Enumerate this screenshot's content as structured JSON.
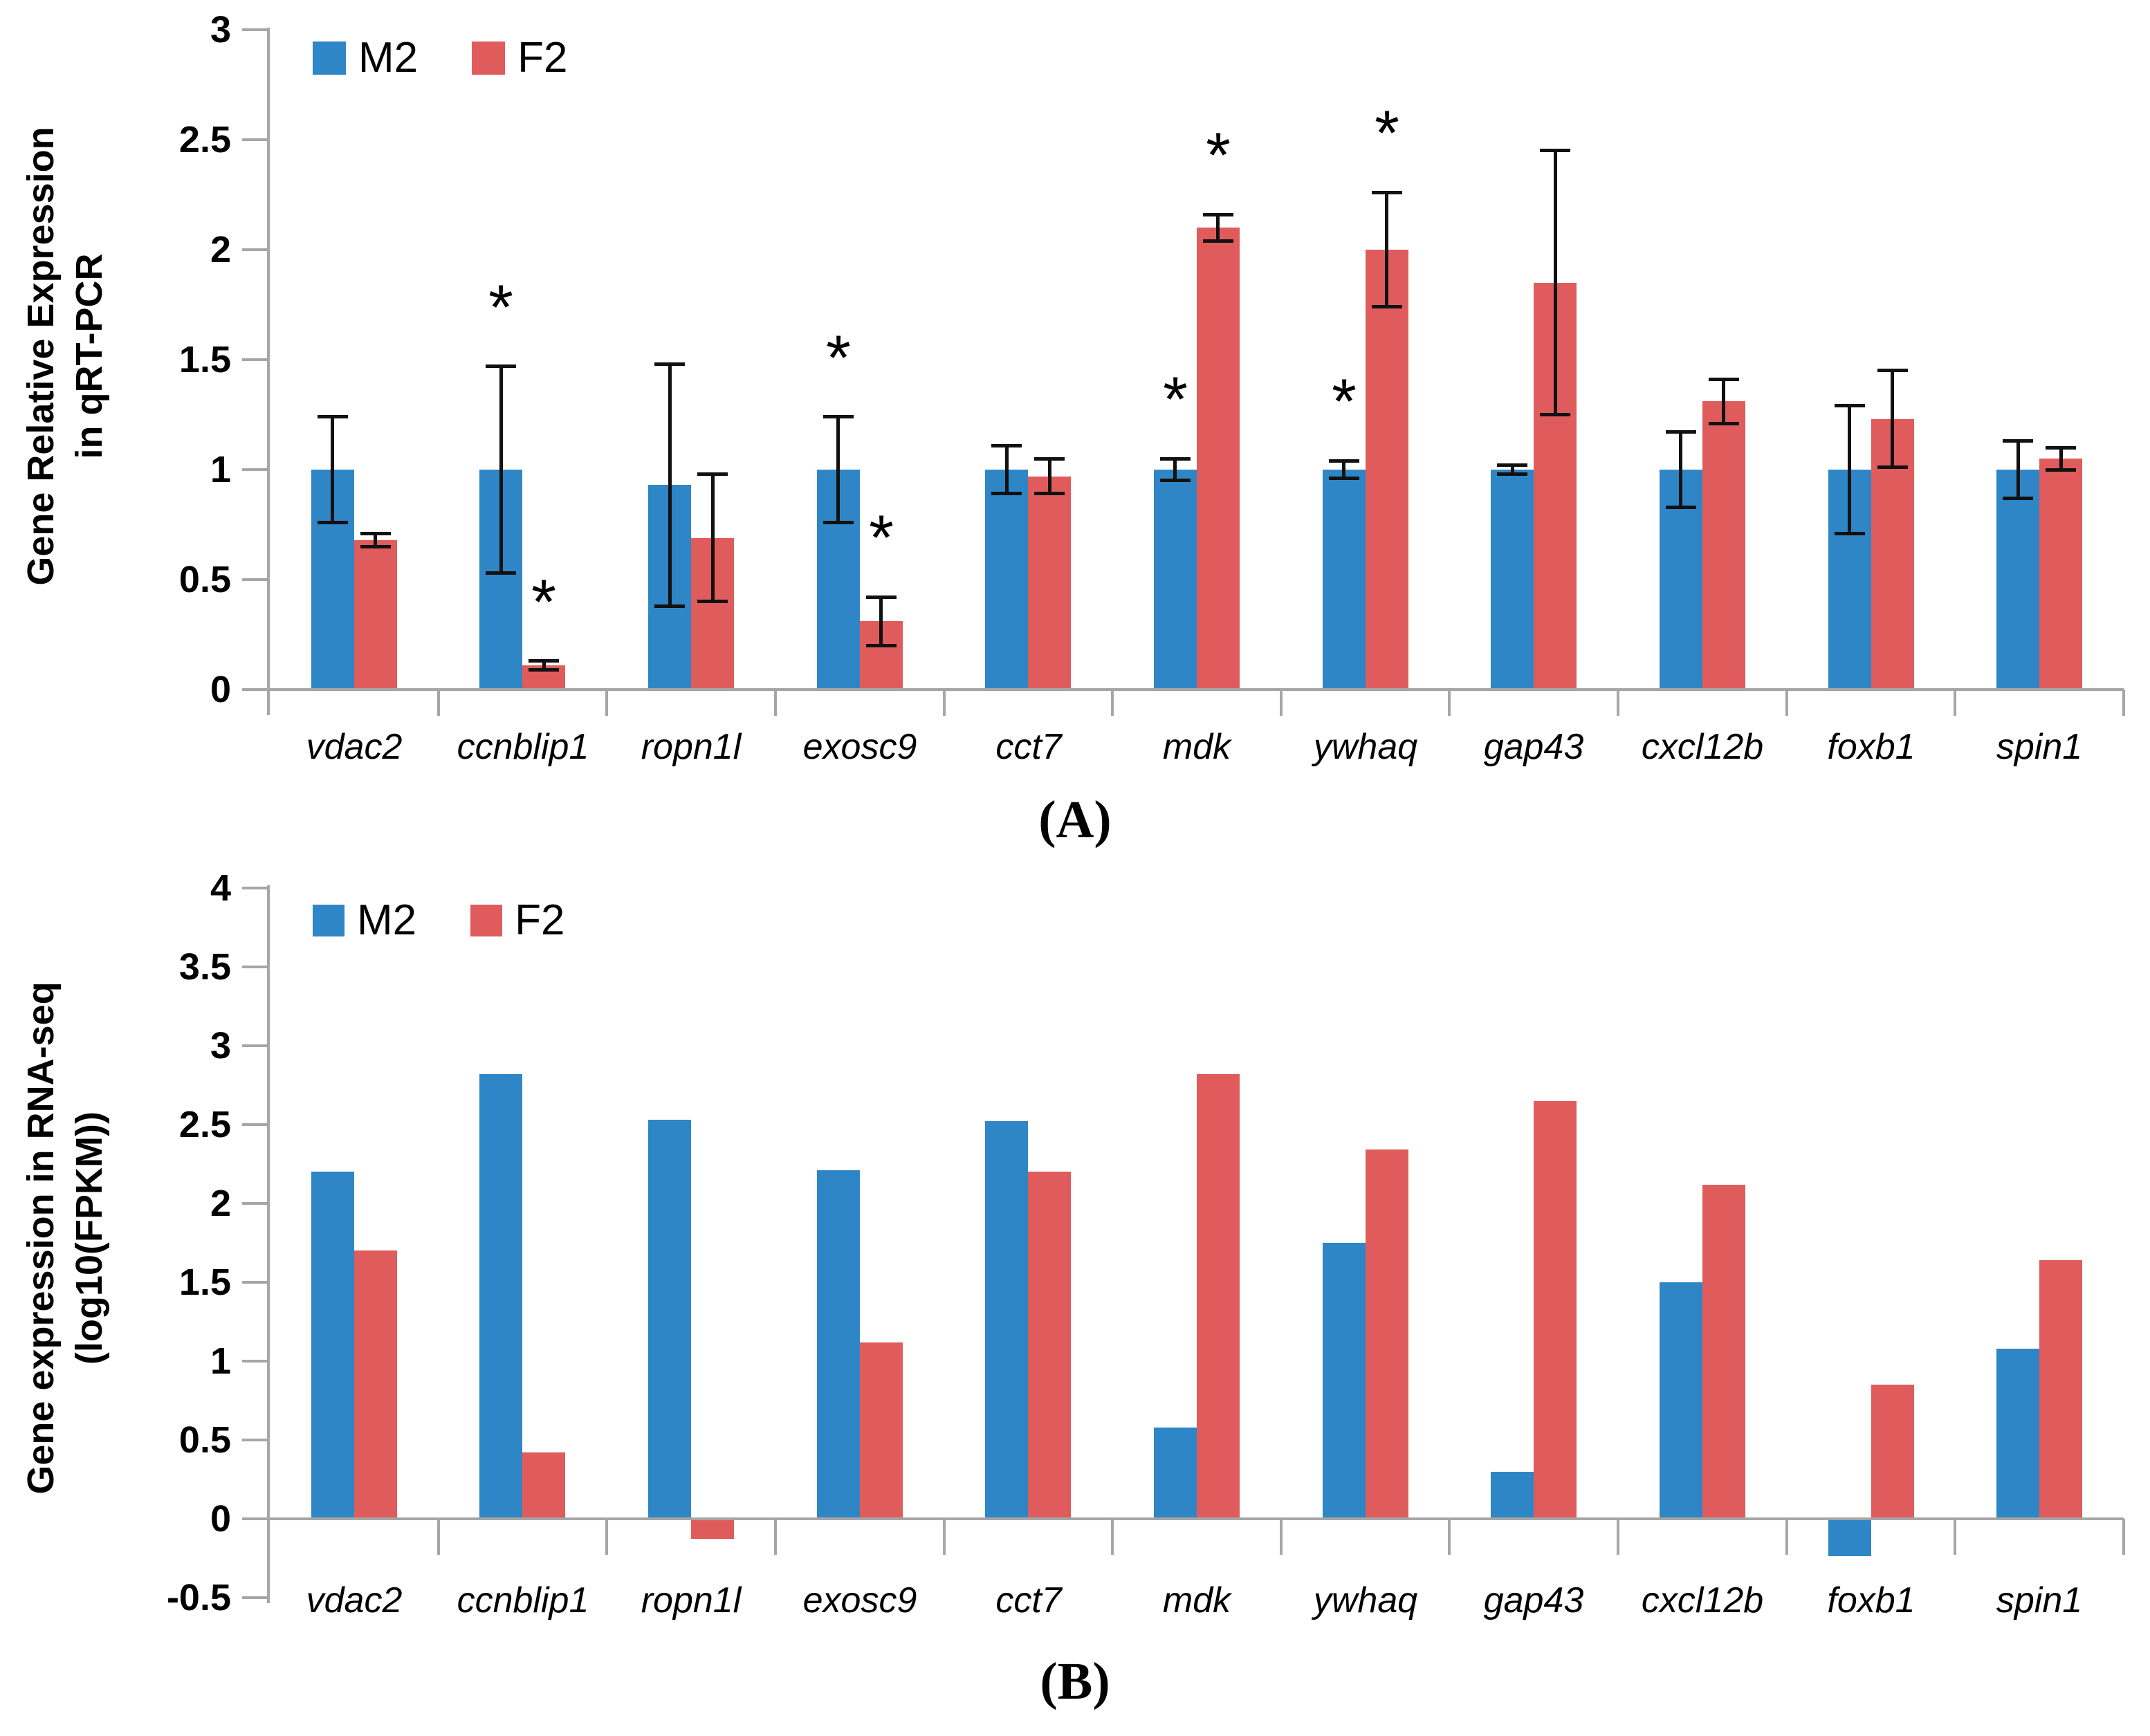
{
  "figure": {
    "panel_labels": [
      "(A)",
      "(B)"
    ],
    "sig_marker": "*",
    "colors": {
      "m2_blue": "#2E86C6",
      "f2_red": "#E05C5C",
      "axis_gray": "#A6A6A6",
      "error_bar_black": "#111111"
    }
  },
  "chart_data": [
    {
      "type": "bar",
      "panel": "A",
      "title": "",
      "xlabel": "",
      "ylabel": "Gene Relative Expression in qRT-PCR",
      "ylabel_lines": [
        "Gene Relative Expression",
        "in qRT-PCR"
      ],
      "ylim": [
        0,
        3
      ],
      "ytick_step": 0.5,
      "yticks": [
        "0",
        "0.5",
        "1",
        "1.5",
        "2",
        "2.5",
        "3"
      ],
      "grid": false,
      "legend_position": "top-left",
      "error_bars": true,
      "categories": [
        "vdac2",
        "ccnblip1",
        "ropn1l",
        "exosc9",
        "cct7",
        "mdk",
        "ywhaq",
        "gap43",
        "cxcl12b",
        "foxb1",
        "spin1"
      ],
      "series": [
        {
          "name": "M2",
          "color": "#2E86C6",
          "values": [
            1.0,
            1.0,
            0.93,
            1.0,
            1.0,
            1.0,
            1.0,
            1.0,
            1.0,
            1.0,
            1.0
          ],
          "errors": [
            0.24,
            0.47,
            0.55,
            0.24,
            0.11,
            0.05,
            0.04,
            0.02,
            0.17,
            0.29,
            0.13
          ],
          "significant": [
            false,
            true,
            false,
            true,
            false,
            true,
            true,
            false,
            false,
            false,
            false
          ]
        },
        {
          "name": "F2",
          "color": "#E05C5C",
          "values": [
            0.68,
            0.11,
            0.69,
            0.31,
            0.97,
            2.1,
            2.0,
            1.85,
            1.31,
            1.23,
            1.05
          ],
          "errors": [
            0.03,
            0.02,
            0.29,
            0.11,
            0.08,
            0.06,
            0.26,
            0.6,
            0.1,
            0.22,
            0.05
          ],
          "significant": [
            false,
            true,
            false,
            true,
            false,
            true,
            true,
            false,
            false,
            false,
            false
          ]
        }
      ]
    },
    {
      "type": "bar",
      "panel": "B",
      "title": "",
      "xlabel": "",
      "ylabel": "Gene expression in RNA-seq (log10(FPKM))",
      "ylabel_lines": [
        "Gene expression in RNA-seq",
        "(log10(FPKM))"
      ],
      "ylim": [
        -0.5,
        4
      ],
      "ytick_step": 0.5,
      "yticks": [
        "-0.5",
        "0",
        "0.5",
        "1",
        "1.5",
        "2",
        "2.5",
        "3",
        "3.5",
        "4"
      ],
      "grid": false,
      "legend_position": "top-left",
      "error_bars": false,
      "categories": [
        "vdac2",
        "ccnblip1",
        "ropn1l",
        "exosc9",
        "cct7",
        "mdk",
        "ywhaq",
        "gap43",
        "cxcl12b",
        "foxb1",
        "spin1"
      ],
      "series": [
        {
          "name": "M2",
          "color": "#2E86C6",
          "values": [
            2.2,
            2.82,
            2.53,
            2.21,
            2.52,
            0.58,
            1.75,
            0.3,
            1.5,
            -0.23,
            1.08
          ]
        },
        {
          "name": "F2",
          "color": "#E05C5C",
          "values": [
            1.7,
            0.42,
            -0.12,
            1.12,
            2.2,
            2.82,
            2.34,
            2.65,
            2.12,
            0.85,
            1.64
          ]
        }
      ]
    }
  ]
}
